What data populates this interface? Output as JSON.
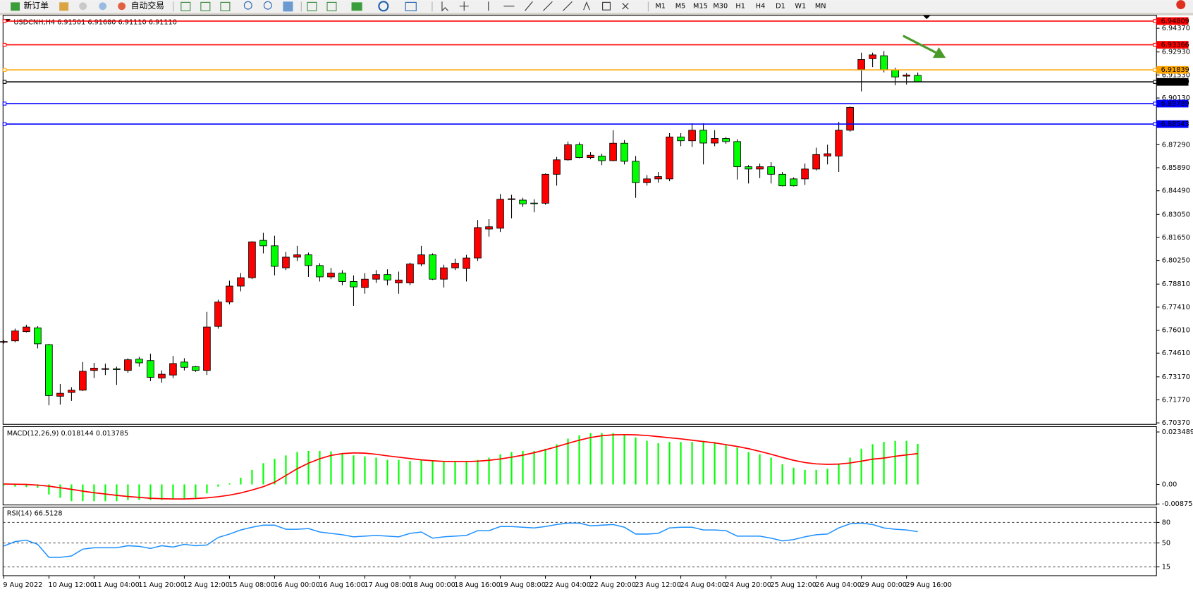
{
  "toolbar": {
    "buttons": [
      "新订单",
      "自动交易"
    ],
    "periods": [
      "M1",
      "M5",
      "M15",
      "M30",
      "H1",
      "H4",
      "D1",
      "W1",
      "MN"
    ]
  },
  "chart_data": [
    {
      "type": "candlestick",
      "title": "USDCNH,H4  6.91501 6.91680 6.91110 6.91110",
      "up_color": "#ff0000",
      "down_color": "#00ff00",
      "categories": [
        "9 Aug 2022",
        null,
        null,
        null,
        "10 Aug 12:00",
        null,
        null,
        null,
        "11 Aug 04:00",
        null,
        null,
        null,
        "11 Aug 20:00",
        null,
        null,
        null,
        "12 Aug 12:00",
        null,
        null,
        null,
        "15 Aug 08:00",
        null,
        null,
        null,
        "16 Aug 00:00",
        null,
        null,
        null,
        "16 Aug 16:00",
        null,
        null,
        null,
        "17 Aug 08:00",
        null,
        null,
        null,
        "18 Aug 00:00",
        null,
        null,
        null,
        "18 Aug 16:00",
        null,
        null,
        null,
        "19 Aug 08:00",
        null,
        null,
        null,
        "22 Aug 04:00",
        null,
        null,
        null,
        "22 Aug 20:00",
        null,
        null,
        null,
        "23 Aug 12:00",
        null,
        null,
        null,
        "24 Aug 04:00",
        null,
        null,
        null,
        "24 Aug 20:00",
        null,
        null,
        null,
        "25 Aug 12:00",
        null,
        null,
        null,
        "26 Aug 04:00",
        null,
        null,
        null,
        "29 Aug 00:00",
        null,
        null,
        null,
        "29 Aug 16:00",
        null
      ],
      "open": [
        6.753,
        6.7536,
        6.7592,
        6.7615,
        6.7513,
        6.7199,
        6.7222,
        6.7236,
        6.7356,
        6.7365,
        6.7366,
        6.7356,
        6.7425,
        6.7416,
        6.731,
        6.7328,
        6.7407,
        6.7379,
        6.7356,
        6.7624,
        6.7772,
        6.7869,
        6.792,
        6.8147,
        6.8114,
        6.798,
        6.8045,
        6.8059,
        6.7994,
        6.7925,
        6.7948,
        6.7897,
        6.786,
        6.7911,
        6.7939,
        6.7888,
        6.7888,
        6.8003,
        6.8059,
        6.7911,
        6.798,
        6.7976,
        6.804,
        6.8216,
        6.8221,
        6.8397,
        6.8392,
        6.8374,
        6.8373,
        6.8549,
        6.8637,
        6.8729,
        6.8651,
        6.866,
        6.8632,
        6.8738,
        6.8628,
        6.8498,
        6.8521,
        6.8521,
        6.8776,
        6.8753,
        6.8817,
        6.8739,
        6.8767,
        6.8748,
        6.8595,
        6.8581,
        6.8595,
        6.8549,
        6.8521,
        6.8521,
        6.8581,
        6.866,
        6.866,
        6.8817,
        6.9187,
        6.9252,
        6.927,
        6.9183,
        6.9146,
        6.91501
      ],
      "high": [
        6.754,
        6.761,
        6.7634,
        6.7625,
        6.7518,
        6.7273,
        6.7254,
        6.7407,
        6.7402,
        6.7397,
        6.7379,
        6.743,
        6.7439,
        6.7458,
        6.7356,
        6.7444,
        6.743,
        6.7384,
        6.7712,
        6.7786,
        6.7902,
        6.7948,
        6.8142,
        6.8193,
        6.8175,
        6.8077,
        6.8114,
        6.8073,
        6.8008,
        6.798,
        6.7966,
        6.7934,
        6.7948,
        6.7966,
        6.7971,
        6.7957,
        6.8012,
        6.8114,
        6.8068,
        6.7999,
        6.8036,
        6.8059,
        6.8271,
        6.8276,
        6.8429,
        6.8424,
        6.8406,
        6.8397,
        6.8554,
        6.8655,
        6.8748,
        6.8743,
        6.8683,
        6.8674,
        6.8817,
        6.8757,
        6.866,
        6.8544,
        6.8563,
        6.8799,
        6.8799,
        6.8859,
        6.8859,
        6.8817,
        6.8776,
        6.8762,
        6.8605,
        6.8614,
        6.8623,
        6.8563,
        6.853,
        6.8614,
        6.8711,
        6.8729,
        6.8868,
        6.8961,
        6.9289,
        6.9289,
        6.9298,
        6.9197,
        6.9164,
        6.9168
      ],
      "low": [
        6.752,
        6.7527,
        6.7587,
        6.749,
        6.7144,
        6.7148,
        6.7171,
        6.7231,
        6.731,
        6.7328,
        6.7268,
        6.7342,
        6.7379,
        6.7291,
        6.7282,
        6.731,
        6.7356,
        6.7347,
        6.7328,
        6.761,
        6.7758,
        6.7837,
        6.7911,
        6.8068,
        6.7934,
        6.7966,
        6.8022,
        6.7925,
        6.7897,
        6.7911,
        6.7874,
        6.7749,
        6.7823,
        6.7888,
        6.7874,
        6.7823,
        6.7874,
        6.799,
        6.7906,
        6.786,
        6.7966,
        6.7897,
        6.8022,
        6.817,
        6.8198,
        6.8281,
        6.835,
        6.8318,
        6.8364,
        6.848,
        6.8632,
        6.8646,
        6.8641,
        6.8605,
        6.8628,
        6.8609,
        6.8406,
        6.848,
        6.8498,
        6.8507,
        6.872,
        6.8715,
        6.8609,
        6.872,
        6.8734,
        6.8517,
        6.8493,
        6.8526,
        6.8493,
        6.8475,
        6.8475,
        6.8484,
        6.8572,
        6.8609,
        6.8563,
        6.8808,
        6.9053,
        6.9201,
        6.9169,
        6.909,
        6.9095,
        6.9111
      ],
      "close": [
        6.7532,
        6.7596,
        6.762,
        6.7518,
        6.7203,
        6.7217,
        6.7236,
        6.7351,
        6.737,
        6.7367,
        6.7364,
        6.7421,
        6.7402,
        6.7314,
        6.7333,
        6.7398,
        6.7375,
        6.7356,
        6.762,
        6.7772,
        6.7869,
        6.792,
        6.8138,
        6.8114,
        6.7989,
        6.8045,
        6.8059,
        6.7994,
        6.7925,
        6.7948,
        6.7897,
        6.7864,
        6.7911,
        6.7939,
        6.7906,
        6.7906,
        6.8003,
        6.8059,
        6.7911,
        6.798,
        6.8008,
        6.804,
        6.8225,
        6.823,
        6.8397,
        6.84,
        6.8369,
        6.8373,
        6.8549,
        6.8637,
        6.8729,
        6.8651,
        6.8665,
        6.8632,
        6.8738,
        6.8628,
        6.8498,
        6.8521,
        6.8535,
        6.8776,
        6.8753,
        6.8817,
        6.8739,
        6.8767,
        6.8748,
        6.8595,
        6.8581,
        6.8595,
        6.8549,
        6.8479,
        6.8479,
        6.8581,
        6.8669,
        6.8674,
        6.8817,
        6.8956,
        6.9247,
        6.9275,
        6.9183,
        6.9141,
        6.9153,
        6.9111
      ],
      "ylim": [
        6.7028,
        6.9516
      ],
      "yticks": [
        {
          "value": 6.9437,
          "label": "6.94370"
        },
        {
          "value": 6.9293,
          "label": "6.92930"
        },
        {
          "value": 6.9153,
          "label": "6.91530"
        },
        {
          "value": 6.9013,
          "label": "6.90130"
        },
        {
          "value": 6.8729,
          "label": "6.87290"
        },
        {
          "value": 6.8589,
          "label": "6.85890"
        },
        {
          "value": 6.8449,
          "label": "6.84490"
        },
        {
          "value": 6.8305,
          "label": "6.83050"
        },
        {
          "value": 6.8165,
          "label": "6.81650"
        },
        {
          "value": 6.8025,
          "label": "6.80250"
        },
        {
          "value": 6.7881,
          "label": "6.78810"
        },
        {
          "value": 6.7741,
          "label": "6.77410"
        },
        {
          "value": 6.7601,
          "label": "6.76010"
        },
        {
          "value": 6.7461,
          "label": "6.74610"
        },
        {
          "value": 6.7317,
          "label": "6.73170"
        },
        {
          "value": 6.7177,
          "label": "6.71770"
        },
        {
          "value": 6.7037,
          "label": "6.70370"
        }
      ],
      "levels": [
        {
          "value": 6.94809,
          "label": "6.94809",
          "color": "#ff0000"
        },
        {
          "value": 6.93366,
          "label": "6.93366",
          "color": "#ff0000"
        },
        {
          "value": 6.91839,
          "label": "6.91839",
          "color": "#ffa500"
        },
        {
          "value": 6.9111,
          "label": "6.91110",
          "color": "#000000"
        },
        {
          "value": 6.89789,
          "label": "6.89789",
          "color": "#0000ff"
        },
        {
          "value": 6.88543,
          "label": "6.88543",
          "color": "#0000ff"
        }
      ]
    },
    {
      "type": "macd",
      "title": "MACD(12,26,9) 0.018144 0.013785",
      "series": [
        {
          "type": "bar",
          "color": "#00ff00",
          "values": [
            -0.0005,
            -0.001,
            -0.0012,
            -0.0015,
            -0.0045,
            -0.006,
            -0.0075,
            -0.0075,
            -0.0075,
            -0.0075,
            -0.0075,
            -0.007,
            -0.007,
            -0.007,
            -0.007,
            -0.0065,
            -0.0065,
            -0.006,
            -0.004,
            -0.001,
            0.0005,
            0.003,
            0.0065,
            0.0095,
            0.0115,
            0.013,
            0.0145,
            0.015,
            0.015,
            0.0148,
            0.014,
            0.013,
            0.0125,
            0.012,
            0.011,
            0.011,
            0.0105,
            0.011,
            0.0105,
            0.0105,
            0.0105,
            0.0105,
            0.011,
            0.012,
            0.0135,
            0.0145,
            0.015,
            0.015,
            0.016,
            0.018,
            0.0205,
            0.022,
            0.023,
            0.023,
            0.023,
            0.0225,
            0.021,
            0.0195,
            0.0185,
            0.019,
            0.019,
            0.019,
            0.0195,
            0.019,
            0.018,
            0.0165,
            0.0145,
            0.0135,
            0.012,
            0.009,
            0.0075,
            0.0065,
            0.0065,
            0.007,
            0.009,
            0.012,
            0.016,
            0.018,
            0.019,
            0.0195,
            0.0195,
            0.018144
          ]
        },
        {
          "type": "line",
          "color": "#ff0000",
          "values": [
            0.0002,
            0.0001,
            0,
            -0.0003,
            -0.0008,
            -0.0015,
            -0.0022,
            -0.003,
            -0.0037,
            -0.0043,
            -0.0049,
            -0.0054,
            -0.0058,
            -0.0062,
            -0.0064,
            -0.0065,
            -0.0065,
            -0.0063,
            -0.006,
            -0.0055,
            -0.0048,
            -0.0038,
            -0.0025,
            -0.001,
            0.001,
            0.004,
            0.007,
            0.0095,
            0.0115,
            0.013,
            0.0138,
            0.0141,
            0.014,
            0.0135,
            0.0128,
            0.0122,
            0.0116,
            0.011,
            0.0106,
            0.0103,
            0.0102,
            0.0102,
            0.0104,
            0.0108,
            0.0114,
            0.0122,
            0.0131,
            0.0142,
            0.0155,
            0.0169,
            0.0184,
            0.0198,
            0.021,
            0.0218,
            0.0222,
            0.0223,
            0.0222,
            0.0219,
            0.0214,
            0.0209,
            0.0204,
            0.0198,
            0.0192,
            0.0186,
            0.0178,
            0.017,
            0.016,
            0.0148,
            0.0135,
            0.0121,
            0.0108,
            0.0098,
            0.0092,
            0.009,
            0.0091,
            0.0096,
            0.0104,
            0.0113,
            0.0118,
            0.0126,
            0.0132,
            0.013785
          ]
        }
      ],
      "ylim": [
        -0.00919,
        0.02587
      ],
      "yticks": [
        0.023489,
        {
          "value": 0,
          "label": "0.00"
        },
        -0.008754
      ]
    },
    {
      "type": "line",
      "title": "RSI(14) 66.5128",
      "color": "#1e90ff",
      "values": [
        45.5,
        52,
        54,
        48,
        29,
        29,
        31,
        41,
        43,
        43,
        43,
        46,
        45,
        42,
        46,
        44,
        48,
        46,
        47,
        58,
        63,
        69,
        73,
        76,
        76,
        70,
        70,
        71,
        66,
        64,
        62,
        59,
        60,
        61,
        60,
        59,
        64,
        66,
        57,
        59,
        60,
        61,
        68,
        68,
        74,
        74,
        73,
        72,
        74,
        77,
        79,
        79,
        75,
        76,
        77,
        73,
        63,
        63,
        64,
        72,
        73,
        73,
        69,
        69,
        68,
        60,
        60,
        60,
        57,
        53,
        55,
        59,
        62,
        63,
        72,
        78,
        79,
        77,
        72,
        70,
        69,
        66.5128
      ],
      "ylim": [
        2.2,
        102.2
      ],
      "yticks": [
        80,
        50,
        15
      ],
      "grid": true
    }
  ]
}
